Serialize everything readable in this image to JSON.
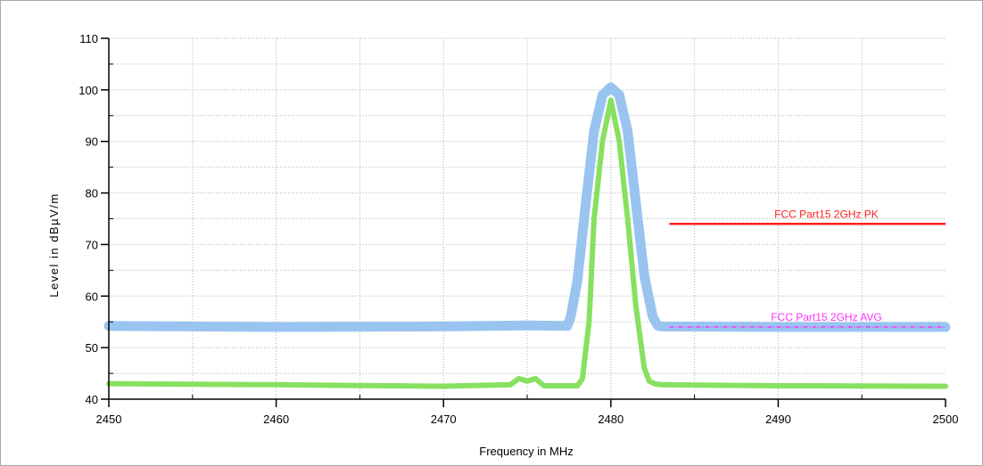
{
  "chart_data": {
    "type": "line",
    "title": "",
    "xlabel": "Frequency in MHz",
    "ylabel": "Level in dBµV/m",
    "xlim": [
      2450,
      2500
    ],
    "ylim": [
      40,
      110
    ],
    "x_ticks": [
      2450,
      2460,
      2470,
      2480,
      2490,
      2500
    ],
    "y_ticks": [
      40,
      50,
      60,
      70,
      80,
      90,
      100,
      110
    ],
    "x_tick_labels": [
      "2450",
      "2460",
      "2470",
      "2480",
      "2490",
      "2500"
    ],
    "y_tick_labels": [
      "40",
      "50",
      "60",
      "70",
      "80",
      "90",
      "100",
      "110"
    ],
    "grid": true,
    "series": [
      {
        "color": "#99c4f0",
        "x": [
          2450,
          2460,
          2470,
          2475,
          2477.4,
          2477.6,
          2478,
          2478.5,
          2479,
          2479.5,
          2480,
          2480.5,
          2481,
          2481.5,
          2482,
          2482.5,
          2482.8,
          2483,
          2490,
          2500
        ],
        "y": [
          54.2,
          54.0,
          54.1,
          54.3,
          54.2,
          56,
          63,
          78,
          92,
          99,
          100.5,
          99,
          92,
          78,
          64,
          56,
          54.3,
          54.1,
          54.0,
          54.0
        ]
      },
      {
        "color": "#88e060",
        "x": [
          2450,
          2460,
          2470,
          2474,
          2474.5,
          2475,
          2475.5,
          2476,
          2478,
          2478.3,
          2478.7,
          2479,
          2479.5,
          2480,
          2480.5,
          2481,
          2481.5,
          2482,
          2482.3,
          2482.6,
          2483,
          2490,
          2500
        ],
        "y": [
          43,
          42.8,
          42.5,
          42.8,
          44,
          43.5,
          44,
          42.6,
          42.6,
          44,
          55,
          75,
          90,
          98,
          90,
          75,
          58,
          46,
          43.5,
          43,
          42.8,
          42.6,
          42.5
        ]
      }
    ],
    "limits": [
      {
        "name": "FCC Part15 2GHz PK",
        "color": "#ff2020",
        "x": [
          2483.5,
          2500
        ],
        "y": 74,
        "style": "solid"
      },
      {
        "name": "FCC Part15 2GHz AVG",
        "color": "#ff33ff",
        "x": [
          2483.5,
          2500
        ],
        "y": 54,
        "style": "dashed"
      }
    ]
  }
}
